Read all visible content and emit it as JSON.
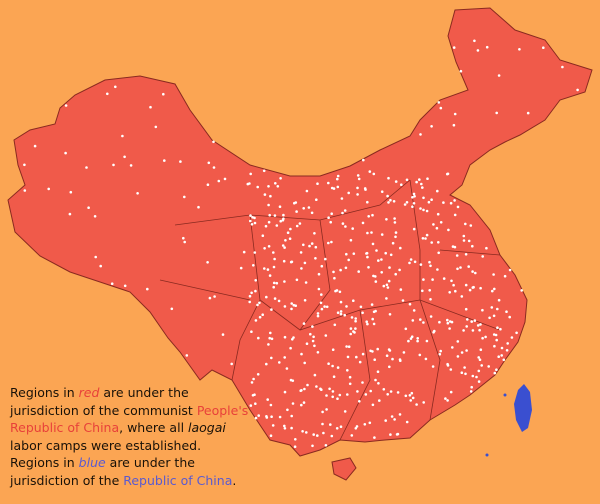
{
  "colors": {
    "background": "#fba553",
    "prc": "#f05a4a",
    "roc": "#3a4fd0",
    "border": "#8a2a20",
    "camp": "#ffffff"
  },
  "caption": {
    "l1a": "Regions in ",
    "l1b": "red",
    "l1c": " are under the",
    "l2a": "jurisdiction of the communist ",
    "l2b": "People's",
    "l3a": "Republic of China",
    "l3b": ", where all ",
    "l3c": "laogai",
    "l4": "labor camps were established.",
    "l5a": "Regions in ",
    "l5b": "blue",
    "l5c": " are under the",
    "l6a": "jurisdiction of the ",
    "l6b": "Republic of China",
    "l6c": "."
  }
}
